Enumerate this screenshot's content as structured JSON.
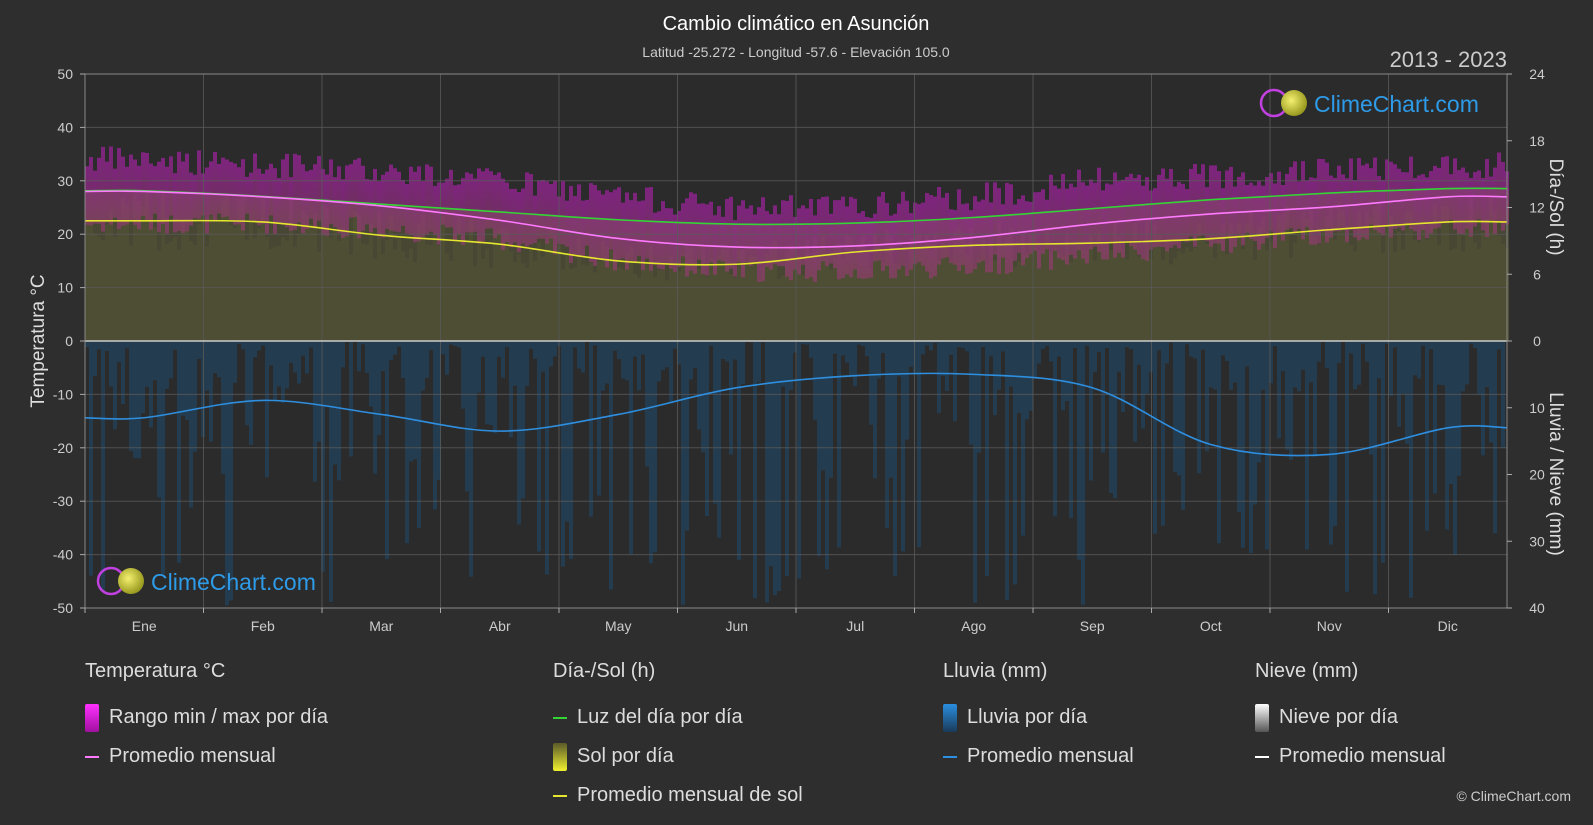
{
  "title": "Cambio climático en Asunción",
  "subtitle": "Latitud -25.272 - Longitud -57.6 - Elevación 105.0",
  "year_range": "2013 - 2023",
  "watermark": "ClimeChart.com",
  "copyright": "© ClimeChart.com",
  "chart_data": {
    "type": "line",
    "categories": [
      "Ene",
      "Feb",
      "Mar",
      "Abr",
      "May",
      "Jun",
      "Jul",
      "Ago",
      "Sep",
      "Oct",
      "Nov",
      "Dic"
    ],
    "left_axis": {
      "label": "Temperatura °C",
      "ylim": [
        -50,
        50
      ],
      "ticks": [
        "50",
        "40",
        "30",
        "20",
        "10",
        "0",
        "-10",
        "-20",
        "-30",
        "-40",
        "-50"
      ]
    },
    "right_axis_top": {
      "label": "Día-/Sol (h)",
      "ylim": [
        0,
        24
      ],
      "ticks": [
        "24",
        "18",
        "12",
        "6",
        "0"
      ]
    },
    "right_axis_bottom": {
      "label": "Lluvia / Nieve (mm)",
      "ylim": [
        0,
        40
      ],
      "ticks": [
        "0",
        "10",
        "20",
        "30",
        "40"
      ]
    },
    "series": [
      {
        "name": "Luz del día por día",
        "axis": "day_sun_h",
        "color": "#35d435",
        "values": [
          13.5,
          13.0,
          12.3,
          11.6,
          10.9,
          10.5,
          10.6,
          11.1,
          11.9,
          12.7,
          13.3,
          13.7
        ]
      },
      {
        "name": "Promedio mensual de sol",
        "axis": "day_sun_h",
        "color": "#e6e62e",
        "values": [
          10.8,
          10.7,
          9.5,
          8.7,
          7.2,
          6.9,
          8.0,
          8.6,
          8.8,
          9.2,
          10.0,
          10.7
        ]
      },
      {
        "name": "Promedio mensual (temperatura)",
        "axis": "temp_c",
        "color": "#ff7aff",
        "values": [
          28.0,
          27.0,
          25.3,
          22.6,
          19.2,
          17.6,
          17.8,
          19.4,
          21.9,
          23.8,
          25.1,
          27.0
        ]
      },
      {
        "name": "Promedio mensual (lluvia)",
        "axis": "rain_mm",
        "color": "#2e8fe0",
        "values": [
          11.5,
          8.9,
          11.0,
          13.5,
          11.0,
          7.0,
          5.2,
          5.0,
          7.0,
          15.5,
          17.0,
          13.0
        ]
      }
    ],
    "temp_daily_range_approx": {
      "max": [
        34,
        33,
        32,
        30,
        27,
        25,
        25,
        27,
        30,
        31,
        32,
        33
      ],
      "min": [
        22,
        22,
        21,
        19,
        15,
        13,
        13,
        14,
        16,
        18,
        20,
        21
      ]
    },
    "grid": true
  },
  "legend": {
    "temperature": {
      "title": "Temperatura °C",
      "items": [
        "Rango min / max por día",
        "Promedio mensual"
      ],
      "colors": [
        "#e020e0",
        "#ff7aff"
      ]
    },
    "daysun": {
      "title": "Día-/Sol (h)",
      "items": [
        "Luz del día por día",
        "Sol por día",
        "Promedio mensual de sol"
      ],
      "colors": [
        "#35d435",
        "#d8d835",
        "#e6e62e"
      ]
    },
    "rain": {
      "title": "Lluvia (mm)",
      "items": [
        "Lluvia por día",
        "Promedio mensual"
      ],
      "colors": [
        "#2a8ee0",
        "#2e8fe0"
      ]
    },
    "snow": {
      "title": "Nieve (mm)",
      "items": [
        "Nieve por día",
        "Promedio mensual"
      ],
      "colors": [
        "#e0e0e0",
        "#ffffff"
      ]
    }
  }
}
